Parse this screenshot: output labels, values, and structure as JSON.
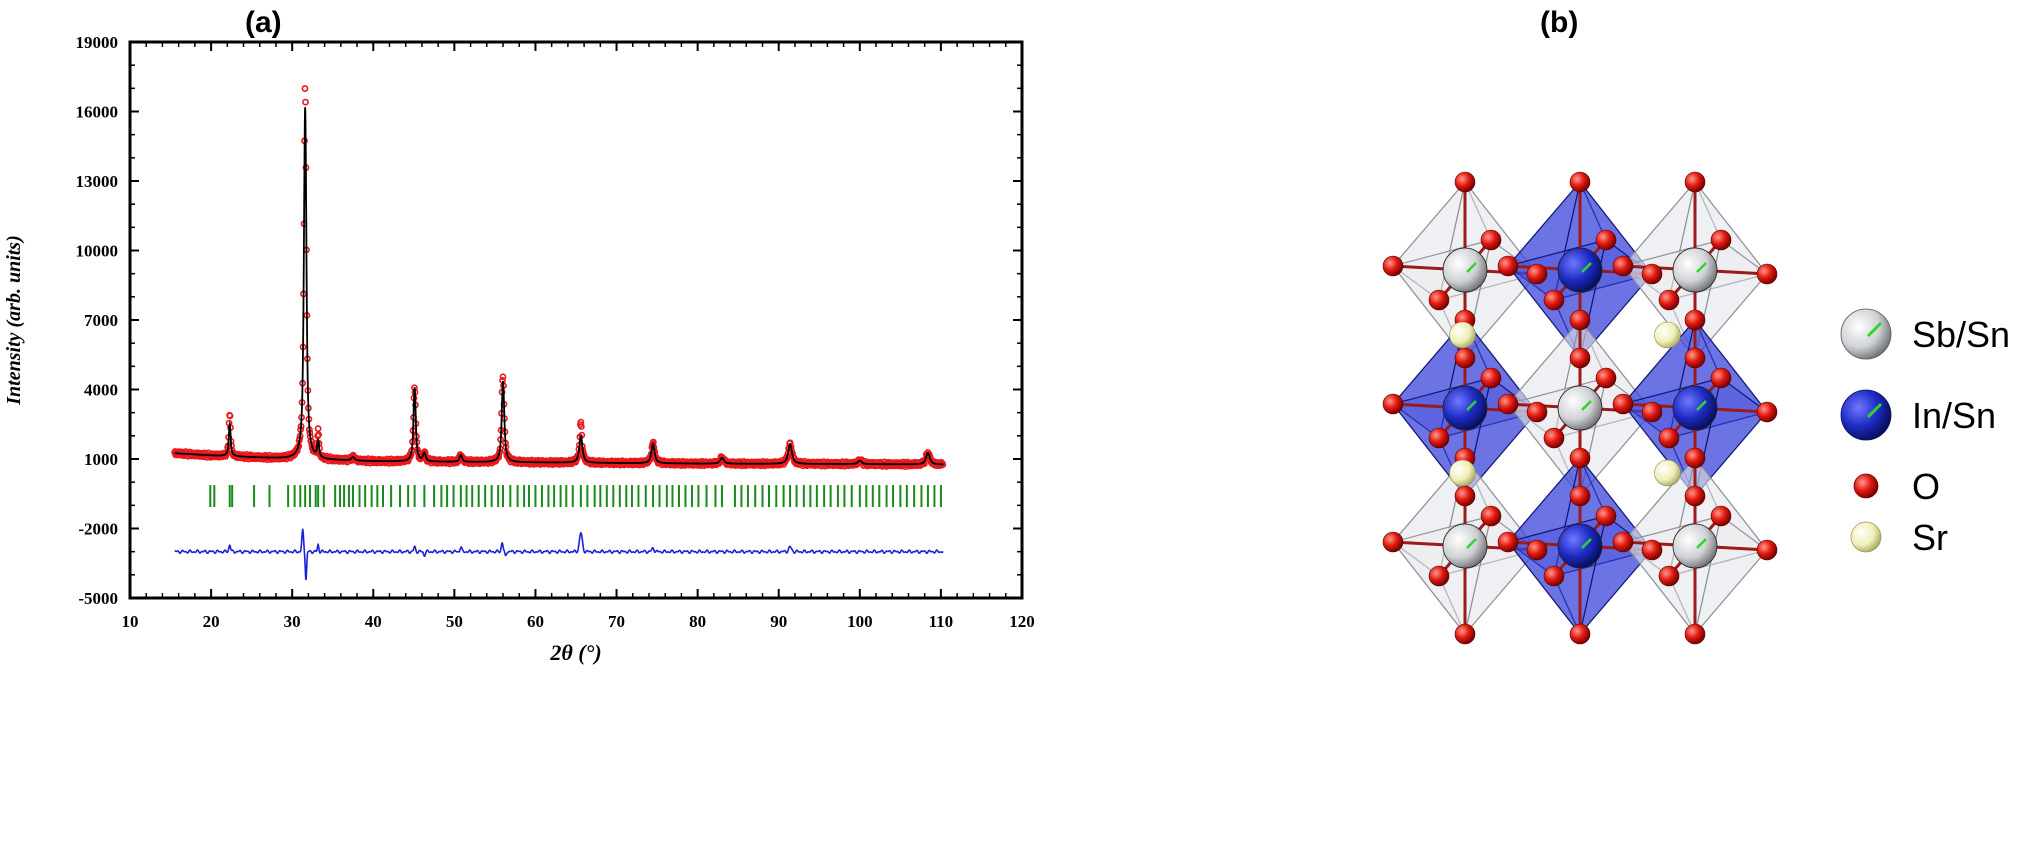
{
  "panels": {
    "a": {
      "label": "(a)"
    },
    "b": {
      "label": "(b)"
    }
  },
  "chart_data": {
    "type": "line",
    "title": "",
    "xlabel": "2θ (°)",
    "ylabel": "Intensity (arb. units)",
    "xlim": [
      10,
      120
    ],
    "ylim": [
      -5000,
      19000
    ],
    "xticks": [
      10,
      20,
      30,
      40,
      50,
      60,
      70,
      80,
      90,
      100,
      110,
      120
    ],
    "yticks": [
      19000,
      16000,
      13000,
      10000,
      7000,
      4000,
      1000,
      -2000,
      -5000
    ],
    "grid": false,
    "legend": "none",
    "colors": {
      "observed": "#e8191d",
      "calculated": "#000000",
      "bragg": "#1a8a1a",
      "difference": "#1a22d6"
    },
    "background": {
      "x": [
        15.5,
        20,
        30,
        40,
        60,
        80,
        100,
        110
      ],
      "y": [
        1250,
        1150,
        1000,
        900,
        850,
        800,
        780,
        760
      ]
    },
    "peaks": [
      {
        "x": 22.3,
        "height": 1400,
        "width": 0.15
      },
      {
        "x": 31.6,
        "height": 15200,
        "width": 0.2
      },
      {
        "x": 33.2,
        "height": 700,
        "width": 0.15
      },
      {
        "x": 37.5,
        "height": 150,
        "width": 0.25
      },
      {
        "x": 45.1,
        "height": 3200,
        "width": 0.18
      },
      {
        "x": 46.3,
        "height": 350,
        "width": 0.2
      },
      {
        "x": 50.8,
        "height": 300,
        "width": 0.2
      },
      {
        "x": 56.0,
        "height": 3500,
        "width": 0.2
      },
      {
        "x": 65.6,
        "height": 1150,
        "width": 0.25
      },
      {
        "x": 74.5,
        "height": 850,
        "width": 0.25
      },
      {
        "x": 83.0,
        "height": 250,
        "width": 0.3
      },
      {
        "x": 91.4,
        "height": 850,
        "width": 0.3
      },
      {
        "x": 100.0,
        "height": 150,
        "width": 0.3
      },
      {
        "x": 108.4,
        "height": 500,
        "width": 0.3
      }
    ],
    "observed_deviation": [
      {
        "x": 22.3,
        "dy": 500
      },
      {
        "x": 31.6,
        "dy": 1000
      },
      {
        "x": 33.2,
        "dy": 400
      },
      {
        "x": 55.9,
        "dy": 450
      },
      {
        "x": 65.6,
        "dy": 600
      }
    ],
    "bragg_y": -600,
    "bragg_positions": [
      19.9,
      20.4,
      22.3,
      22.6,
      25.3,
      27.2,
      29.5,
      30.3,
      31.0,
      31.6,
      32.2,
      32.9,
      33.2,
      33.9,
      35.3,
      35.9,
      36.4,
      37.0,
      37.5,
      38.3,
      39.0,
      39.8,
      40.5,
      41.2,
      42.2,
      43.3,
      44.3,
      45.1,
      46.3,
      47.5,
      48.4,
      49.1,
      49.9,
      50.8,
      51.5,
      52.2,
      53.0,
      53.8,
      54.6,
      55.4,
      56.0,
      56.9,
      57.8,
      58.6,
      59.2,
      60.0,
      60.8,
      61.6,
      62.3,
      63.1,
      63.8,
      64.6,
      65.6,
      66.4,
      67.3,
      68.0,
      68.8,
      69.6,
      70.4,
      71.2,
      71.9,
      72.7,
      73.6,
      74.5,
      75.3,
      76.2,
      76.9,
      77.7,
      78.5,
      79.3,
      80.1,
      81.1,
      82.2,
      83.0,
      84.6,
      85.4,
      86.2,
      87.1,
      88.0,
      88.8,
      89.7,
      90.6,
      91.4,
      92.2,
      93.1,
      93.9,
      94.7,
      95.6,
      96.4,
      97.3,
      98.1,
      99.0,
      100.0,
      100.8,
      101.6,
      102.4,
      103.3,
      104.1,
      105.0,
      105.8,
      106.7,
      107.6,
      108.4,
      109.2,
      110.0
    ],
    "difference_baseline": -3000,
    "difference_features": [
      {
        "x": 22.3,
        "dy": 300,
        "w": 0.15
      },
      {
        "x": 31.3,
        "dy": 900,
        "w": 0.15
      },
      {
        "x": 31.7,
        "dy": -1200,
        "w": 0.12
      },
      {
        "x": 33.2,
        "dy": 300,
        "w": 0.12
      },
      {
        "x": 45.1,
        "dy": 200,
        "w": 0.15
      },
      {
        "x": 46.3,
        "dy": -150,
        "w": 0.15
      },
      {
        "x": 50.8,
        "dy": 200,
        "w": 0.15
      },
      {
        "x": 55.9,
        "dy": 400,
        "w": 0.15
      },
      {
        "x": 56.3,
        "dy": -200,
        "w": 0.12
      },
      {
        "x": 65.6,
        "dy": 800,
        "w": 0.25
      },
      {
        "x": 74.5,
        "dy": 150,
        "w": 0.2
      },
      {
        "x": 91.4,
        "dy": 200,
        "w": 0.25
      }
    ],
    "x_range": [
      15.5,
      110.3
    ]
  },
  "structure": {
    "legend": [
      {
        "label": "Sb/Sn",
        "color": "#d7d9db",
        "edge": "#555555",
        "icon": "gray-sphere-icon",
        "size": "large"
      },
      {
        "label": "In/Sn",
        "color": "#2631b6",
        "edge": "#0a1060",
        "icon": "blue-sphere-icon",
        "size": "large"
      },
      {
        "label": "O",
        "color": "#e3190f",
        "edge": "#7a0000",
        "icon": "red-sphere-icon",
        "size": "small"
      },
      {
        "label": "Sr",
        "color": "#f0efb4",
        "edge": "#9a9a60",
        "icon": "yellow-sphere-icon",
        "size": "medium"
      }
    ],
    "octahedra": [
      {
        "type": "Sb/Sn",
        "row": 0,
        "col": 0
      },
      {
        "type": "In/Sn",
        "row": 0,
        "col": 1
      },
      {
        "type": "Sb/Sn",
        "row": 0,
        "col": 2
      },
      {
        "type": "In/Sn",
        "row": 1,
        "col": 0
      },
      {
        "type": "Sb/Sn",
        "row": 1,
        "col": 1
      },
      {
        "type": "In/Sn",
        "row": 1,
        "col": 2
      },
      {
        "type": "Sb/Sn",
        "row": 2,
        "col": 0
      },
      {
        "type": "In/Sn",
        "row": 2,
        "col": 1
      },
      {
        "type": "Sb/Sn",
        "row": 2,
        "col": 2
      }
    ],
    "sr_sites": [
      {
        "row": 0,
        "col": 0
      },
      {
        "row": 0,
        "col": 1
      },
      {
        "row": 1,
        "col": 0
      },
      {
        "row": 1,
        "col": 1
      }
    ]
  }
}
